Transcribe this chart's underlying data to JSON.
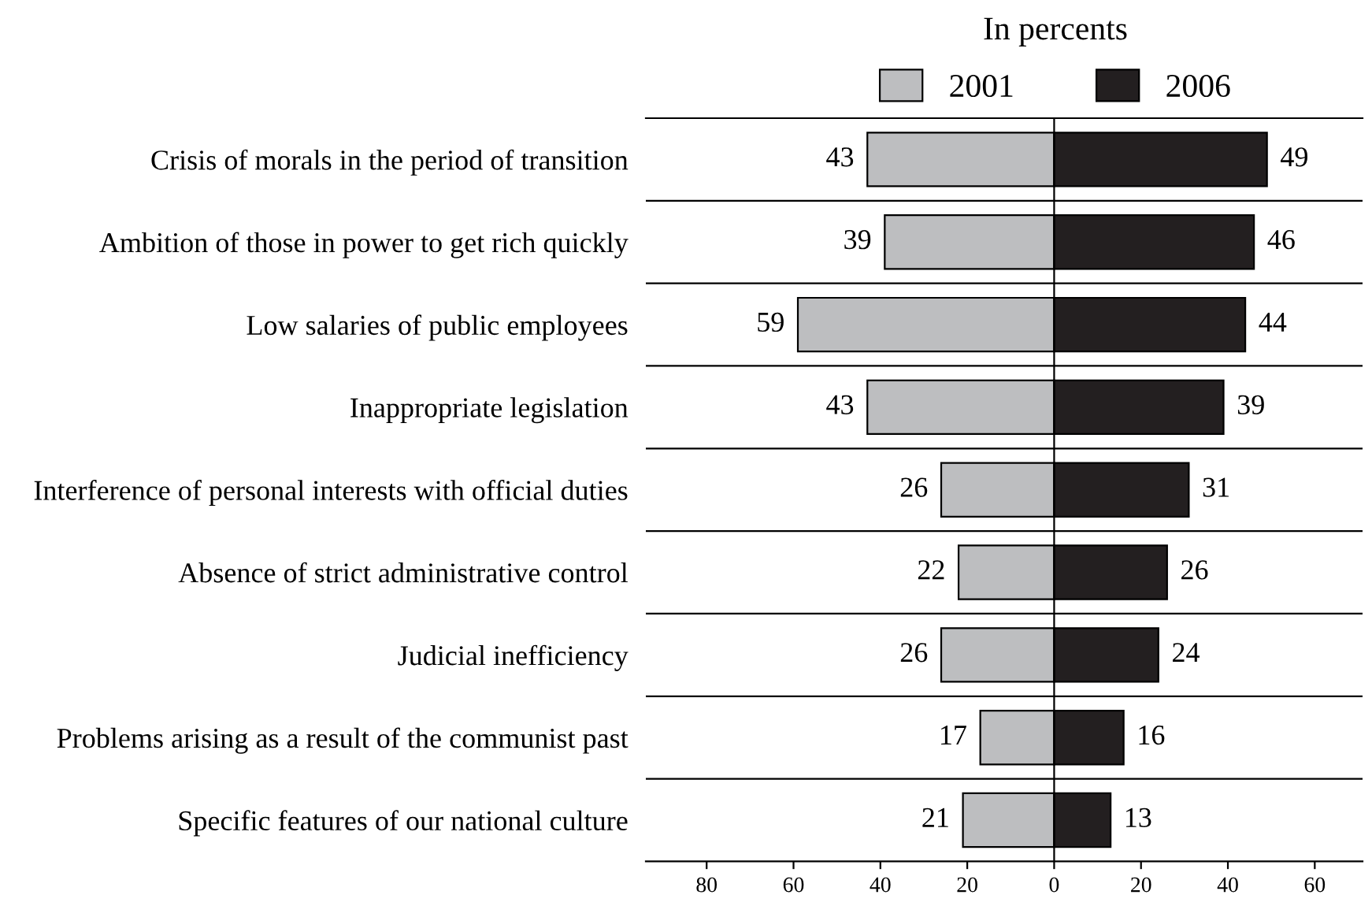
{
  "chart_data": {
    "type": "bar",
    "orientation": "horizontal",
    "title": "In percents",
    "categories": [
      "Crisis of morals in the period of transition",
      "Ambition of those in power to get rich quickly",
      "Low salaries of public employees",
      "Inappropriate legislation",
      "Interference of personal interests with official duties",
      "Absence of strict administrative control",
      "Judicial inefficiency",
      "Problems arising as a result of the communist past",
      "Specific features of our national culture"
    ],
    "series": [
      {
        "name": "2001",
        "color": "#bdbec0",
        "values": [
          43,
          39,
          59,
          43,
          26,
          22,
          26,
          17,
          21
        ],
        "base": [
          -43,
          -39,
          -59,
          -43,
          -26,
          -22,
          -26,
          -17,
          -21
        ],
        "value_labels": [
          "43",
          "39",
          "59",
          "43",
          "26",
          "22",
          "26",
          "17",
          "21"
        ]
      },
      {
        "name": "2006",
        "color": "#231f20",
        "values": [
          49,
          46,
          44,
          39,
          31,
          26,
          24,
          16,
          13
        ],
        "value_labels": [
          "49",
          "46",
          "44",
          "39",
          "31",
          "26",
          "24",
          "16",
          "13"
        ]
      }
    ],
    "xlim": [
      -94,
      71
    ],
    "xticks": [
      {
        "value": -80,
        "label": "80"
      },
      {
        "value": -60,
        "label": "60"
      },
      {
        "value": -40,
        "label": "40"
      },
      {
        "value": -20,
        "label": "20"
      },
      0,
      20,
      40,
      60
    ],
    "ref_lines": [
      {
        "axis": "x",
        "value": 0,
        "color": "#000000"
      }
    ],
    "grid": "y",
    "legend": "top"
  }
}
